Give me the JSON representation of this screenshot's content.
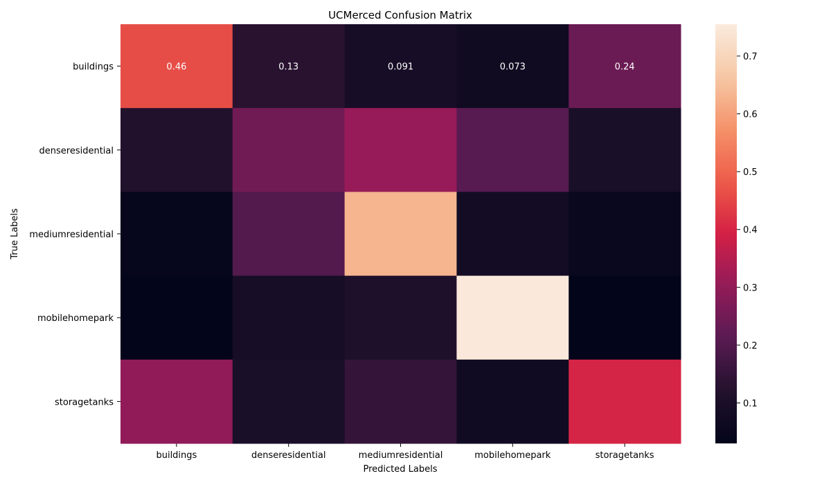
{
  "chart_data": {
    "type": "heatmap",
    "title": "UCMerced Confusion Matrix",
    "xlabel": "Predicted Labels",
    "ylabel": "True Labels",
    "x_categories": [
      "buildings",
      "denseresidential",
      "mediumresidential",
      "mobilehomepark",
      "storagetanks"
    ],
    "y_categories": [
      "buildings",
      "denseresidential",
      "mediumresidential",
      "mobilehomepark",
      "storagetanks"
    ],
    "values": [
      [
        0.46,
        0.13,
        0.091,
        0.073,
        0.24
      ],
      [
        0.12,
        0.25,
        0.31,
        0.21,
        0.1
      ],
      [
        0.04,
        0.2,
        0.63,
        0.08,
        0.05
      ],
      [
        0.03,
        0.09,
        0.11,
        0.75,
        0.03
      ],
      [
        0.3,
        0.1,
        0.15,
        0.07,
        0.4
      ]
    ],
    "annotations": [
      [
        "0.46",
        "0.13",
        "0.091",
        "0.073",
        "0.24"
      ],
      [
        "",
        "",
        "",
        "",
        ""
      ],
      [
        "",
        "",
        "",
        "",
        ""
      ],
      [
        "",
        "",
        "",
        "",
        ""
      ],
      [
        "",
        "",
        "",
        "",
        ""
      ]
    ],
    "colormap": "rocket",
    "colorbar": {
      "min": 0.03,
      "max": 0.755,
      "ticks": [
        0.1,
        0.2,
        0.3,
        0.4,
        0.5,
        0.6,
        0.7
      ]
    },
    "grid": false,
    "legend": "colorbar-right"
  }
}
